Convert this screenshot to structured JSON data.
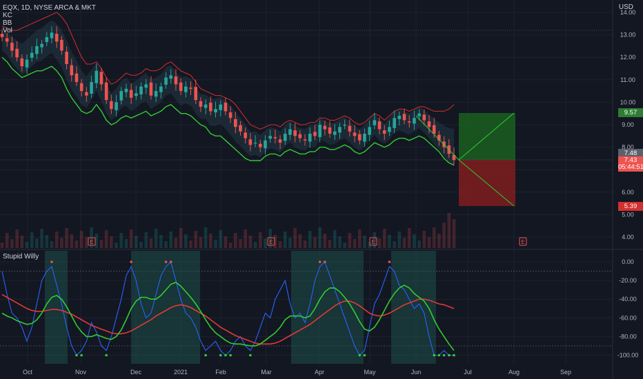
{
  "header": {
    "symbol_line": "EQX, 1D, NYSE ARCA & MKT",
    "indicators": [
      "KC",
      "BB",
      "Vol"
    ],
    "currency": "USD"
  },
  "oscillator": {
    "title": "Stupid Willy"
  },
  "badges": {
    "target": "9.57",
    "current": "7.48",
    "last": "7.43",
    "countdown": "05:44:51",
    "stop": "5.39"
  },
  "earnings_marker": "E",
  "colors": {
    "bg": "#131722",
    "grid": "#1e2230",
    "up": "#26a69a",
    "down": "#ef5350",
    "lime": "#4caf50",
    "keltner_upper": "#d32f2f",
    "keltner_lower": "#32cd32",
    "osc_line": "#2962ff",
    "osc_fast": "#32cd32",
    "osc_slow": "#e53935",
    "target_zone": "#1b5e20",
    "stop_zone": "#7f1d1d"
  },
  "chart_data": [
    {
      "type": "candlestick",
      "title": "EQX, 1D, NYSE ARCA & MKT",
      "ylabel": "USD",
      "ylim": [
        3.6,
        14.3
      ],
      "y_ticks": [
        "14.00",
        "13.00",
        "12.00",
        "11.00",
        "10.00",
        "9.00",
        "8.00",
        "7.00",
        "6.00",
        "5.00",
        "4.00"
      ],
      "x_ticks": [
        "Oct",
        "Nov",
        "Dec",
        "2021",
        "Feb",
        "Mar",
        "Apr",
        "May",
        "Jun",
        "Jul",
        "Aug",
        "Sep"
      ],
      "close_series": [
        12.9,
        12.7,
        12.3,
        12.0,
        11.6,
        11.9,
        12.2,
        12.5,
        12.6,
        12.9,
        13.1,
        12.7,
        12.3,
        11.7,
        11.2,
        10.9,
        10.5,
        10.3,
        10.9,
        11.4,
        10.8,
        10.1,
        9.7,
        10.0,
        10.5,
        10.6,
        10.2,
        10.4,
        10.7,
        10.8,
        10.3,
        10.5,
        10.7,
        11.1,
        11.2,
        10.8,
        10.5,
        10.7,
        10.6,
        10.1,
        9.8,
        9.9,
        9.6,
        9.7,
        9.9,
        9.6,
        9.3,
        8.9,
        8.7,
        8.4,
        8.1,
        8.2,
        8.0,
        8.3,
        8.5,
        8.4,
        8.2,
        8.6,
        8.8,
        8.5,
        8.4,
        8.3,
        8.6,
        8.5,
        9.0,
        8.8,
        8.6,
        8.7,
        8.9,
        9.0,
        8.7,
        8.5,
        8.3,
        8.6,
        8.9,
        9.2,
        8.8,
        8.6,
        8.9,
        9.3,
        9.4,
        9.2,
        9.1,
        9.3,
        9.5,
        9.2,
        8.9,
        8.6,
        8.3,
        8.0,
        7.7,
        7.43
      ],
      "keltner_upper": [
        13.4,
        13.3,
        13.2,
        13.2,
        13.3,
        13.4,
        13.5,
        13.6,
        13.7,
        13.8,
        13.9,
        14.0,
        13.8,
        13.5,
        13.0,
        12.5,
        12.0,
        11.7,
        11.7,
        11.8,
        11.5,
        11.1,
        10.8,
        10.9,
        11.1,
        11.3,
        11.2,
        11.2,
        11.3,
        11.5,
        11.4,
        11.4,
        11.5,
        11.7,
        11.8,
        11.6,
        11.4,
        11.3,
        11.2,
        10.9,
        10.6,
        10.5,
        10.4,
        10.3,
        10.3,
        10.2,
        10.1,
        9.9,
        9.6,
        9.3,
        9.0,
        8.9,
        8.8,
        8.9,
        9.0,
        9.0,
        8.9,
        9.1,
        9.2,
        9.1,
        9.0,
        9.0,
        9.1,
        9.1,
        9.3,
        9.3,
        9.2,
        9.2,
        9.3,
        9.4,
        9.3,
        9.1,
        9.0,
        9.1,
        9.3,
        9.5,
        9.4,
        9.2,
        9.4,
        9.6,
        9.7,
        9.7,
        9.6,
        9.7,
        9.8,
        9.8,
        9.7,
        9.6,
        9.6,
        9.6,
        9.7,
        9.9
      ],
      "keltner_lower": [
        12.0,
        11.8,
        11.5,
        11.3,
        11.1,
        11.2,
        11.3,
        11.4,
        11.4,
        11.5,
        11.6,
        11.4,
        11.1,
        10.6,
        10.2,
        9.9,
        9.6,
        9.5,
        9.6,
        9.9,
        9.6,
        9.2,
        9.0,
        9.1,
        9.3,
        9.4,
        9.3,
        9.4,
        9.5,
        9.6,
        9.4,
        9.5,
        9.6,
        9.8,
        9.9,
        9.7,
        9.5,
        9.5,
        9.4,
        9.2,
        9.0,
        8.9,
        8.6,
        8.5,
        8.5,
        8.3,
        8.1,
        7.9,
        7.7,
        7.5,
        7.4,
        7.4,
        7.4,
        7.6,
        7.7,
        7.7,
        7.6,
        7.8,
        7.9,
        7.8,
        7.7,
        7.7,
        7.8,
        7.8,
        8.0,
        8.0,
        7.9,
        7.9,
        8.0,
        8.1,
        8.0,
        7.8,
        7.7,
        7.8,
        8.0,
        8.2,
        8.1,
        8.0,
        8.1,
        8.3,
        8.4,
        8.4,
        8.3,
        8.4,
        8.5,
        8.4,
        8.2,
        8.0,
        7.8,
        7.5,
        7.3,
        7.2
      ],
      "annotations": [
        {
          "label": "target",
          "value": 9.57
        },
        {
          "label": "current",
          "value": 7.48
        },
        {
          "label": "last",
          "value": 7.43
        },
        {
          "label": "stop",
          "value": 5.39
        }
      ]
    },
    {
      "type": "line",
      "title": "Stupid Willy",
      "ylim": [
        -105,
        5
      ],
      "y_ticks": [
        "0.00",
        "-20.00",
        "-40.00",
        "-60.00",
        "-80.00",
        "-100.00"
      ],
      "series": [
        {
          "values": [
            -10,
            -35,
            -55,
            -60,
            -70,
            -85,
            -70,
            -45,
            -20,
            -10,
            -5,
            -25,
            -45,
            -70,
            -90,
            -100,
            -95,
            -85,
            -65,
            -75,
            -90,
            -95,
            -80,
            -60,
            -40,
            -15,
            -5,
            -20,
            -45,
            -60,
            -55,
            -35,
            -15,
            -5,
            0,
            -20,
            -40,
            -55,
            -60,
            -70,
            -85,
            -95,
            -90,
            -85,
            -95,
            -100,
            -95,
            -85,
            -80,
            -90,
            -95,
            -85,
            -70,
            -55,
            -60,
            -40,
            -30,
            -20,
            -45,
            -60,
            -55,
            -65,
            -45,
            -20,
            -5,
            0,
            -15,
            -30,
            -45,
            -60,
            -75,
            -90,
            -100,
            -95,
            -70,
            -45,
            -35,
            -20,
            -5,
            -10,
            -25,
            -30,
            -40,
            -50,
            -45,
            -55,
            -80,
            -100,
            -100,
            -95,
            -100,
            -100
          ]
        },
        {
          "values": [
            -55,
            -58,
            -60,
            -63,
            -65,
            -67,
            -66,
            -62,
            -55,
            -45,
            -38,
            -36,
            -40,
            -48,
            -58,
            -68,
            -75,
            -80,
            -80,
            -78,
            -80,
            -82,
            -83,
            -80,
            -73,
            -62,
            -50,
            -42,
            -38,
            -38,
            -40,
            -40,
            -36,
            -30,
            -24,
            -22,
            -26,
            -32,
            -38,
            -45,
            -53,
            -62,
            -70,
            -76,
            -80,
            -84,
            -87,
            -88,
            -88,
            -89,
            -90,
            -90,
            -88,
            -84,
            -80,
            -76,
            -70,
            -62,
            -58,
            -58,
            -58,
            -60,
            -58,
            -50,
            -40,
            -32,
            -28,
            -28,
            -32,
            -38,
            -45,
            -54,
            -64,
            -72,
            -74,
            -70,
            -62,
            -52,
            -42,
            -34,
            -28,
            -25,
            -28,
            -34,
            -38,
            -42,
            -50,
            -62,
            -72,
            -80,
            -88,
            -95
          ]
        },
        {
          "values": [
            -35,
            -38,
            -41,
            -44,
            -47,
            -50,
            -52,
            -53,
            -53,
            -52,
            -51,
            -51,
            -52,
            -54,
            -56,
            -59,
            -62,
            -65,
            -68,
            -70,
            -72,
            -74,
            -76,
            -77,
            -77,
            -76,
            -74,
            -71,
            -68,
            -65,
            -62,
            -58,
            -55,
            -52,
            -49,
            -47,
            -46,
            -47,
            -49,
            -52,
            -55,
            -58,
            -62,
            -66,
            -70,
            -73,
            -76,
            -79,
            -81,
            -83,
            -85,
            -87,
            -88,
            -88,
            -88,
            -87,
            -85,
            -82,
            -79,
            -76,
            -73,
            -70,
            -67,
            -63,
            -59,
            -55,
            -51,
            -47,
            -44,
            -42,
            -42,
            -44,
            -47,
            -51,
            -55,
            -57,
            -58,
            -57,
            -55,
            -52,
            -49,
            -46,
            -44,
            -42,
            -40,
            -40,
            -41,
            -43,
            -45,
            -46,
            -48,
            -50
          ]
        }
      ]
    }
  ]
}
